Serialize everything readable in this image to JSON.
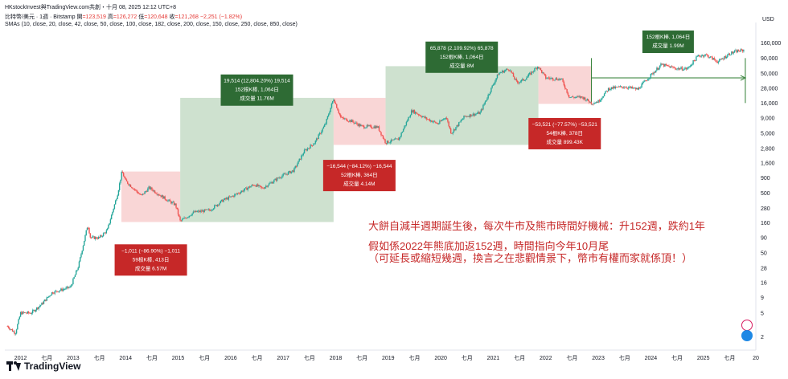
{
  "header": {
    "line1": "HKstockInvest與TradingView.com共創・十月 08, 2025 12:12 UTC+8",
    "symbol": "比特幣/美元 · 1週 · Bitstamp",
    "ohlc_open_label": "開",
    "ohlc_open": "=123,519",
    "ohlc_high_label": "高",
    "ohlc_high": "=126,272",
    "ohlc_low_label": "低",
    "ohlc_low": "=120,648",
    "ohlc_close_label": "收",
    "ohlc_close": "=121,268",
    "ohlc_change": "−2,251 (−1.82%)",
    "smas": "SMAs (10, close, 20, close, 42, close, 50, close, 100, close, 182, close, 200, close, 150, close, 250, close, 850, close)"
  },
  "y_axis_title": "USD",
  "annotation_text": {
    "line1": "大餅自減半週期誕生後，每次牛市及熊市時間好機械：升152週，跌約1年",
    "line2": "假如係2022年熊底加返152週，時間指向今年10月尾",
    "line3": "（可延長或縮短幾週，換言之在悲觀情景下，幣市有權而家就係頂！）"
  },
  "footer": {
    "brand": "TradingView"
  },
  "colors": {
    "up": "#26a69a",
    "down": "#ef5350",
    "bull_fill": "#a5c9a8",
    "bear_fill": "#f4b4b4",
    "bull_box": "#2e6b34",
    "bear_box": "#c62828",
    "text_red": "#c62828"
  },
  "chart_data": {
    "type": "candlestick",
    "title": "",
    "ylabel": "USD",
    "yscale": "log",
    "ylim": [
      1.2,
      260000
    ],
    "xlim": [
      2011.7,
      2026.0
    ],
    "y_ticks": [
      160000,
      90000,
      50000,
      28000,
      16000,
      9000,
      5000,
      2800,
      1600,
      900,
      500,
      280,
      160,
      90,
      50,
      28,
      16,
      9,
      5,
      2
    ],
    "y_tick_labels": [
      "160,000",
      "90,000",
      "50,000",
      "28,000",
      "16,000",
      "9,000",
      "5,000",
      "2,800",
      "1,600",
      "900",
      "500",
      "280",
      "160",
      "90",
      "50",
      "28",
      "16",
      "9",
      "5",
      "2"
    ],
    "x_ticks": [
      2012,
      2012.5,
      2013,
      2013.5,
      2014,
      2014.5,
      2015,
      2015.5,
      2016,
      2016.5,
      2017,
      2017.5,
      2018,
      2018.5,
      2019,
      2019.5,
      2020,
      2020.5,
      2021,
      2021.5,
      2022,
      2022.5,
      2023,
      2023.5,
      2024,
      2024.5,
      2025,
      2025.5
    ],
    "x_tick_labels": [
      "2012",
      "七月",
      "2013",
      "七月",
      "2014",
      "七月",
      "2015",
      "七月",
      "2016",
      "七月",
      "2017",
      "七月",
      "2018",
      "七月",
      "2019",
      "七月",
      "2020",
      "七月",
      "2021",
      "七月",
      "2022",
      "七月",
      "2023",
      "七月",
      "2024",
      "七月",
      "2025",
      "七月"
    ],
    "x_tick_label_extra": "20",
    "price_path": [
      [
        2011.75,
        3.0
      ],
      [
        2011.9,
        2.3
      ],
      [
        2012.0,
        5.0
      ],
      [
        2012.2,
        5.0
      ],
      [
        2012.4,
        7.0
      ],
      [
        2012.6,
        11.0
      ],
      [
        2012.75,
        12.0
      ],
      [
        2012.95,
        13.5
      ],
      [
        2013.1,
        30.0
      ],
      [
        2013.28,
        150.0
      ],
      [
        2013.33,
        90.0
      ],
      [
        2013.5,
        90.0
      ],
      [
        2013.65,
        120.0
      ],
      [
        2013.85,
        500.0
      ],
      [
        2013.93,
        1150.0
      ],
      [
        2014.0,
        800.0
      ],
      [
        2014.15,
        600.0
      ],
      [
        2014.3,
        450.0
      ],
      [
        2014.45,
        620.0
      ],
      [
        2014.6,
        500.0
      ],
      [
        2014.8,
        380.0
      ],
      [
        2014.95,
        320.0
      ],
      [
        2015.04,
        170.0
      ],
      [
        2015.3,
        240.0
      ],
      [
        2015.6,
        260.0
      ],
      [
        2015.85,
        380.0
      ],
      [
        2016.0,
        430.0
      ],
      [
        2016.45,
        700.0
      ],
      [
        2016.6,
        600.0
      ],
      [
        2016.95,
        950.0
      ],
      [
        2017.2,
        1200.0
      ],
      [
        2017.4,
        2500.0
      ],
      [
        2017.6,
        3500.0
      ],
      [
        2017.8,
        7000.0
      ],
      [
        2017.96,
        19000.0
      ],
      [
        2018.1,
        9000.0
      ],
      [
        2018.3,
        8000.0
      ],
      [
        2018.5,
        6500.0
      ],
      [
        2018.8,
        6400.0
      ],
      [
        2018.95,
        3500.0
      ],
      [
        2019.2,
        4000.0
      ],
      [
        2019.45,
        12000.0
      ],
      [
        2019.7,
        9000.0
      ],
      [
        2019.95,
        7200.0
      ],
      [
        2020.1,
        9500.0
      ],
      [
        2020.2,
        5000.0
      ],
      [
        2020.45,
        9500.0
      ],
      [
        2020.75,
        11000.0
      ],
      [
        2020.97,
        29000.0
      ],
      [
        2021.1,
        50000.0
      ],
      [
        2021.3,
        60000.0
      ],
      [
        2021.45,
        35000.0
      ],
      [
        2021.6,
        40000.0
      ],
      [
        2021.85,
        66000.0
      ],
      [
        2022.0,
        42000.0
      ],
      [
        2022.3,
        40000.0
      ],
      [
        2022.45,
        20000.0
      ],
      [
        2022.7,
        20000.0
      ],
      [
        2022.87,
        16000.0
      ],
      [
        2023.0,
        17000.0
      ],
      [
        2023.2,
        28000.0
      ],
      [
        2023.5,
        30000.0
      ],
      [
        2023.75,
        27000.0
      ],
      [
        2023.95,
        42000.0
      ],
      [
        2024.2,
        70000.0
      ],
      [
        2024.5,
        60000.0
      ],
      [
        2024.7,
        60000.0
      ],
      [
        2024.9,
        98000.0
      ],
      [
        2025.05,
        102000.0
      ],
      [
        2025.28,
        78000.0
      ],
      [
        2025.5,
        107000.0
      ],
      [
        2025.65,
        118000.0
      ],
      [
        2025.77,
        121268.0
      ]
    ],
    "zones": [
      {
        "kind": "bear",
        "x0": 2013.92,
        "x1": 2015.04,
        "y0": 1150,
        "y1": 165
      },
      {
        "kind": "bull",
        "x0": 2015.04,
        "x1": 2017.96,
        "y0": 19500,
        "y1": 165
      },
      {
        "kind": "bear",
        "x0": 2017.96,
        "x1": 2018.95,
        "y0": 19500,
        "y1": 3200
      },
      {
        "kind": "bull",
        "x0": 2018.95,
        "x1": 2021.86,
        "y0": 66000,
        "y1": 3200
      },
      {
        "kind": "bear",
        "x0": 2021.86,
        "x1": 2022.87,
        "y0": 66000,
        "y1": 15500
      }
    ],
    "projection": {
      "x0": 2022.87,
      "x1": 2025.8,
      "y_arrow": 42000,
      "vline_top": 90000,
      "vline_bottom": 16000
    },
    "labels": [
      {
        "kind": "bear",
        "x": 2014.48,
        "y": 70,
        "lines": [
          "−1,011 (−86.90%) −1,011",
          "59根K棒, 413日",
          "成交量 6.57M"
        ]
      },
      {
        "kind": "bull",
        "x": 2016.5,
        "y": 48000,
        "lines": [
          "19,514 (12,804.20%) 19,514",
          "152根K棒, 1,064日",
          "成交量 11.76M"
        ]
      },
      {
        "kind": "bear",
        "x": 2018.45,
        "y": 1800,
        "lines": [
          "−16,544 (−84.12%) −16,544",
          "52根K棒, 364日",
          "成交量 4.14M"
        ]
      },
      {
        "kind": "bull",
        "x": 2020.4,
        "y": 170000,
        "lines": [
          "65,878 (2,109.92%) 65,878",
          "152根K棒, 1,064日",
          "成交量 8M"
        ]
      },
      {
        "kind": "bear",
        "x": 2022.36,
        "y": 9000,
        "lines": [
          "−53,521 (−77.57%) −53,521",
          "54根K棒, 378日",
          "成交量 899.43K"
        ]
      },
      {
        "kind": "bull",
        "x": 2024.33,
        "y": 260000,
        "lines": [
          "152根K棒, 1,064日",
          "成交量 1.99M"
        ]
      }
    ]
  }
}
